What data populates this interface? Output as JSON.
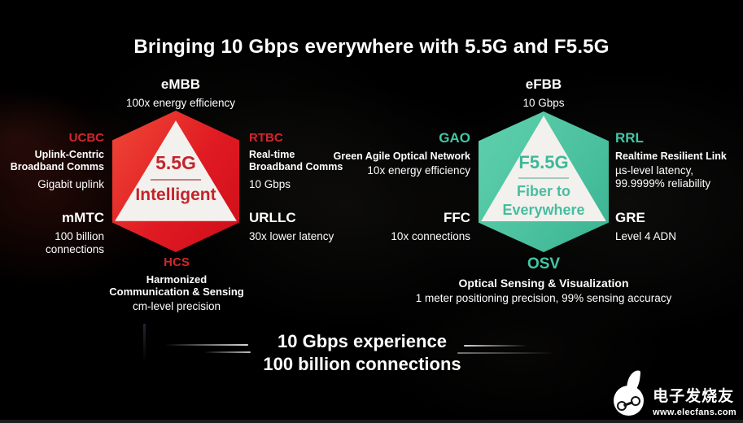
{
  "title": "Bringing 10 Gbps everywhere with 5.5G and F5.5G",
  "left": {
    "core": {
      "name": "5.5G",
      "tagline": "Intelligent"
    },
    "embb": {
      "label": "eMBB",
      "desc": "100x energy efficiency"
    },
    "ucbc": {
      "label": "UCBC",
      "name1": "Uplink-Centric",
      "name2": "Broadband Comms",
      "desc": "Gigabit uplink"
    },
    "rtbc": {
      "label": "RTBC",
      "name1": "Real-time",
      "name2": "Broadband Comms",
      "desc": "10 Gbps"
    },
    "mmtc": {
      "label": "mMTC",
      "desc1": "100 billion",
      "desc2": "connections"
    },
    "urllc": {
      "label": "URLLC",
      "desc": "30x lower latency"
    },
    "hcs": {
      "label": "HCS",
      "name1": "Harmonized",
      "name2": "Communication & Sensing",
      "desc": "cm-level precision"
    }
  },
  "right": {
    "core": {
      "name": "F5.5G",
      "tagline1": "Fiber to",
      "tagline2": "Everywhere"
    },
    "efbb": {
      "label": "eFBB",
      "desc": "10 Gbps"
    },
    "gao": {
      "label": "GAO",
      "name1": "Green Agile Optical Network",
      "desc": "10x energy efficiency"
    },
    "rrl": {
      "label": "RRL",
      "name1": "Realtime Resilient Link",
      "desc1": "µs-level latency,",
      "desc2": "99.9999% reliability"
    },
    "ffc": {
      "label": "FFC",
      "desc": "10x connections"
    },
    "gre": {
      "label": "GRE",
      "desc": "Level 4 ADN"
    },
    "osv": {
      "label": "OSV",
      "name1": "Optical Sensing & Visualization",
      "desc": "1 meter positioning precision, 99% sensing accuracy"
    }
  },
  "footer": {
    "line1": "10 Gbps experience",
    "line2": "100 billion connections"
  },
  "watermark": {
    "brand": "电子发烧友",
    "url": "www.elecfans.com",
    "logo_icon": "elecfans-flame-circuit-logo"
  },
  "colors": {
    "accent_red": "#e0151e",
    "accent_teal": "#4cc2a0",
    "core_red_text": "#c3242c",
    "core_teal_text": "#3eb89a",
    "label_red": "#d2262c",
    "label_teal": "#43c7a4",
    "panel_white": "#f3f1ed"
  }
}
